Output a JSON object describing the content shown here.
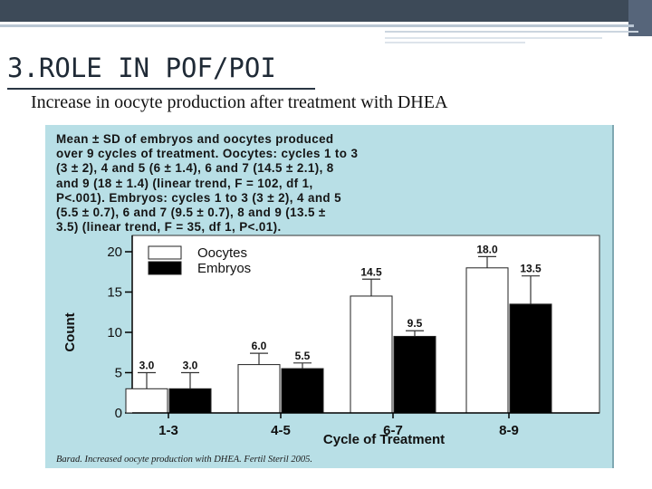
{
  "slide": {
    "title": "3.ROLE IN POF/POI",
    "subtitle": "Increase in oocyte production after treatment with DHEA"
  },
  "figure": {
    "caption_lines": [
      "Mean ± SD of embryos and oocytes produced",
      "over 9 cycles of treatment. Oocytes: cycles 1 to 3",
      "(3 ± 2), 4 and 5 (6 ± 1.4), 6 and 7 (14.5 ± 2.1), 8",
      "and 9 (18 ± 1.4) (linear trend, F = 102, df 1,",
      "P<.001). Embryos: cycles 1 to 3 (3 ± 2), 4 and 5",
      "(5.5 ± 0.7), 6 and 7 (9.5 ± 0.7), 8 and 9 (13.5 ±",
      "3.5) (linear trend, F = 35, df 1, P<.01)."
    ],
    "citation": "Barad. Increased oocyte production with DHEA. Fertil Steril 2005."
  },
  "chart_data": {
    "type": "bar",
    "categories": [
      "1-3",
      "4-5",
      "6-7",
      "8-9"
    ],
    "series": [
      {
        "name": "Oocytes",
        "values": [
          3.0,
          6.0,
          14.5,
          18.0
        ],
        "sd": [
          2,
          1.4,
          2.1,
          1.4
        ],
        "labels": [
          "3.0",
          "6.0",
          "14.5",
          "18.0"
        ],
        "fill": "#ffffff"
      },
      {
        "name": "Embryos",
        "values": [
          3.0,
          5.5,
          9.5,
          13.5
        ],
        "sd": [
          2,
          0.7,
          0.7,
          3.5
        ],
        "labels": [
          "3.0",
          "5.5",
          "9.5",
          "13.5"
        ],
        "fill": "#000000"
      }
    ],
    "xlabel": "Cycle of Treatment",
    "ylabel": "Count",
    "ylim": [
      0,
      20
    ],
    "yticks": [
      0,
      5,
      10,
      15,
      20
    ],
    "legend": "top-left",
    "grid": false,
    "plot_background": "#ffffff",
    "figure_background": "#b8dfe6"
  }
}
